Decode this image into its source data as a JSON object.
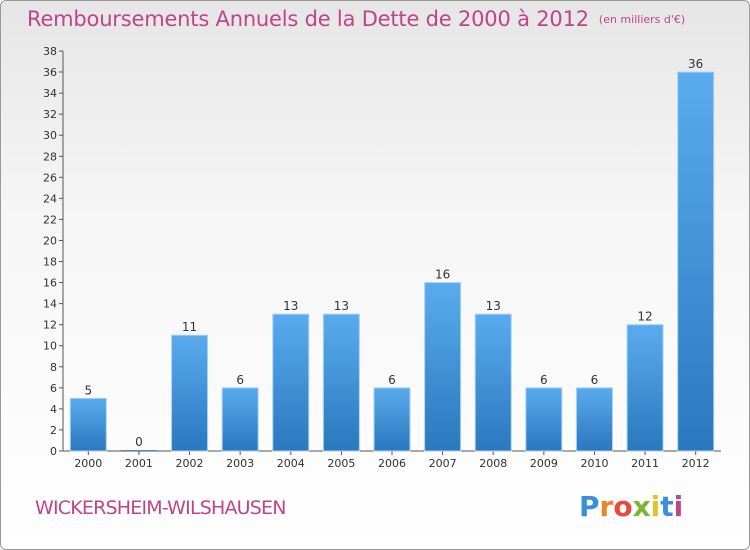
{
  "chart_data": {
    "type": "bar",
    "title": "Remboursements Annuels de la Dette de 2000 à 2012",
    "unit": "(en milliers d'€)",
    "categories": [
      "2000",
      "2001",
      "2002",
      "2003",
      "2004",
      "2005",
      "2006",
      "2007",
      "2008",
      "2009",
      "2010",
      "2011",
      "2012"
    ],
    "values": [
      5,
      0,
      11,
      6,
      13,
      13,
      6,
      16,
      13,
      6,
      6,
      12,
      36
    ],
    "ylim": [
      0,
      38
    ],
    "ytick_step": 2,
    "grid": false,
    "bar_color": "#3a8fd6"
  },
  "footer": {
    "commune": "WICKERSHEIM-WILSHAUSEN",
    "logo": [
      "P",
      "r",
      "o",
      "x",
      "i",
      "t",
      "i"
    ],
    "logo_colors": [
      "#3a8fd6",
      "#e8862a",
      "#e84a3a",
      "#7ab534",
      "#e8c12a",
      "#3a8fd6",
      "#c0448a"
    ]
  }
}
